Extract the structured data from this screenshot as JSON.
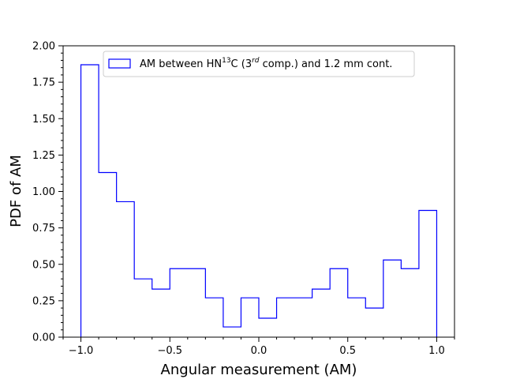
{
  "chart_data": {
    "type": "histogram-step",
    "xlabel": "Angular measurement (AM)",
    "ylabel": "PDF of AM",
    "xlim": [
      -1.1,
      1.1
    ],
    "ylim": [
      0.0,
      2.0
    ],
    "xticks": [
      -1.0,
      -0.5,
      0.0,
      0.5,
      1.0
    ],
    "xtick_labels": [
      "−1.0",
      "−0.5",
      "0.0",
      "0.5",
      "1.0"
    ],
    "yticks": [
      0.0,
      0.25,
      0.5,
      0.75,
      1.0,
      1.25,
      1.5,
      1.75,
      2.0
    ],
    "ytick_labels": [
      "0.00",
      "0.25",
      "0.50",
      "0.75",
      "1.00",
      "1.25",
      "1.50",
      "1.75",
      "2.00"
    ],
    "bin_edges": [
      -1.0,
      -0.9,
      -0.8,
      -0.7,
      -0.6,
      -0.5,
      -0.4,
      -0.3,
      -0.2,
      -0.1,
      0.0,
      0.1,
      0.2,
      0.3,
      0.4,
      0.5,
      0.6,
      0.7,
      0.8,
      0.9,
      1.0
    ],
    "series": [
      {
        "name": "AM between HN13C (3rd comp.) and 1.2 mm cont.",
        "color": "#0000ff",
        "values": [
          1.87,
          1.13,
          0.93,
          0.4,
          0.33,
          0.47,
          0.47,
          0.27,
          0.07,
          0.27,
          0.13,
          0.27,
          0.27,
          0.33,
          0.47,
          0.27,
          0.2,
          0.53,
          0.47,
          0.87
        ]
      }
    ],
    "legend": {
      "placement": "upper-center",
      "text_prefix": "AM between HN",
      "text_sup1": "13",
      "text_mid": "C (3",
      "text_sup2": "rd",
      "text_suffix": " comp.) and 1.2 mm cont."
    },
    "grid": false
  }
}
